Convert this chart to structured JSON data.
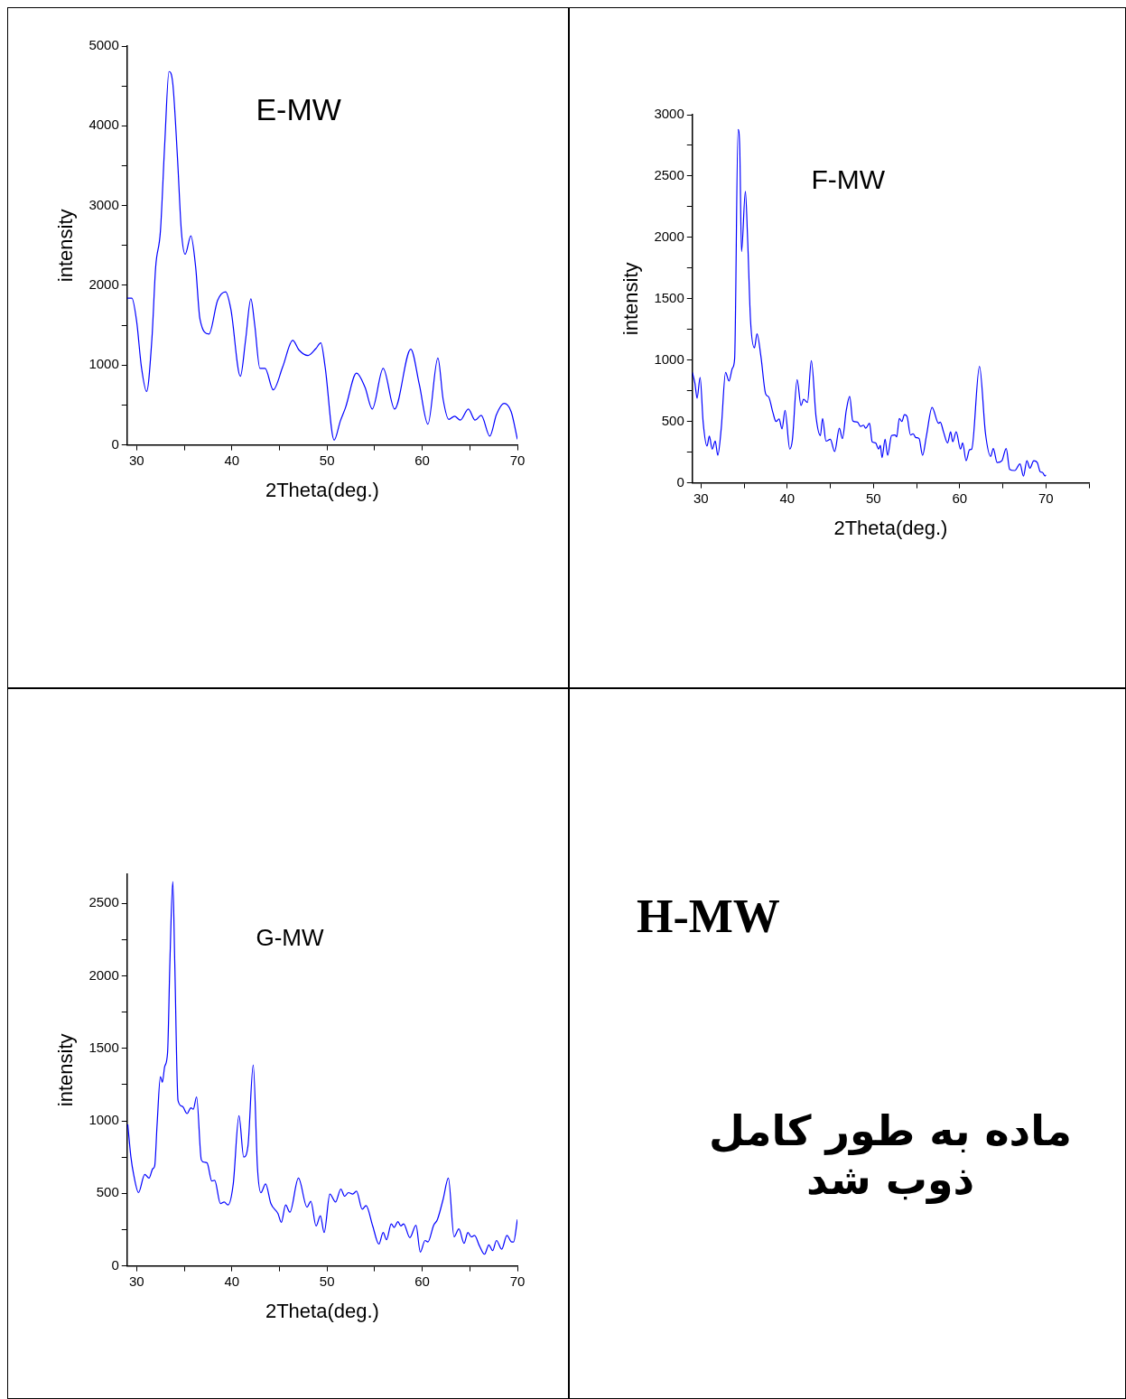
{
  "chart_data": [
    {
      "type": "line",
      "title": "E-MW",
      "xlabel": "2Theta(deg.)",
      "ylabel": "intensity",
      "xlim": [
        29,
        70
      ],
      "ylim": [
        0,
        5000
      ],
      "xticks": [
        30,
        {
          "value": 35,
          "label": null
        },
        40,
        {
          "value": 45,
          "label": null
        },
        50,
        {
          "value": 55,
          "label": null
        },
        60,
        {
          "value": 65,
          "label": null
        },
        70
      ],
      "yticks": [
        0,
        {
          "value": 500,
          "label": null
        },
        1000,
        {
          "value": 1500,
          "label": null
        },
        2000,
        {
          "value": 2500,
          "label": null
        },
        3000,
        {
          "value": 3500,
          "label": null
        },
        4000,
        {
          "value": 4500,
          "label": null
        },
        5000
      ],
      "x": [
        29,
        29.5,
        30,
        30.5,
        31.05,
        31.6,
        32,
        32.5,
        32.95,
        33.4,
        33.8,
        34.3,
        34.7,
        35.1,
        35.7,
        36.2,
        36.65,
        37.6,
        38.5,
        39.35,
        39.9,
        40.9,
        41.45,
        42,
        42.4,
        42.95,
        43.5,
        44.35,
        45.35,
        46.4,
        47.05,
        48,
        48.85,
        49.35,
        49.8,
        50.75,
        51.4,
        51.95,
        53.1,
        54,
        54.75,
        55.9,
        57.1,
        58.8,
        59.7,
        60.6,
        61.65,
        62.2,
        62.8,
        63.4,
        64,
        64.85,
        65.55,
        66.2,
        67.1,
        67.8,
        68.6,
        69.35,
        70
      ],
      "series": [
        {
          "color": "#0000ff",
          "values": [
            1840,
            1840,
            1550,
            980,
            670,
            1320,
            2230,
            2680,
            3770,
            4680,
            4530,
            3580,
            2680,
            2390,
            2620,
            2230,
            1580,
            1390,
            1810,
            1920,
            1700,
            860,
            1320,
            1830,
            1510,
            960,
            960,
            690,
            980,
            1310,
            1190,
            1120,
            1210,
            1280,
            980,
            60,
            300,
            470,
            900,
            720,
            450,
            960,
            450,
            1200,
            755,
            260,
            1090,
            570,
            320,
            360,
            310,
            450,
            310,
            370,
            110,
            380,
            520,
            415,
            70
          ]
        }
      ]
    },
    {
      "type": "line",
      "title": "F-MW",
      "xlabel": "2Theta(deg.)",
      "ylabel": "intensity",
      "xlim": [
        29,
        75
      ],
      "ylim": [
        0,
        3000
      ],
      "xticks": [
        30,
        {
          "value": 35,
          "label": null
        },
        40,
        {
          "value": 45,
          "label": null
        },
        50,
        {
          "value": 55,
          "label": null
        },
        60,
        {
          "value": 65,
          "label": null
        },
        70,
        {
          "value": 75,
          "label": null
        }
      ],
      "yticks": [
        0,
        {
          "value": 250,
          "label": null
        },
        500,
        {
          "value": 750,
          "label": null
        },
        1000,
        {
          "value": 1250,
          "label": null
        },
        1500,
        {
          "value": 1750,
          "label": null
        },
        2000,
        {
          "value": 2250,
          "label": null
        },
        2500,
        {
          "value": 2750,
          "label": null
        },
        3000
      ],
      "x": [
        29,
        29.3,
        29.55,
        29.9,
        30.25,
        30.7,
        30.97,
        31.3,
        31.65,
        31.95,
        32.35,
        32.85,
        33.25,
        33.65,
        33.9,
        34.3,
        34.5,
        34.7,
        35.15,
        35.4,
        35.75,
        36.2,
        36.5,
        36.95,
        37.5,
        37.85,
        38.35,
        38.7,
        39.05,
        39.4,
        39.75,
        40.3,
        40.6,
        41.15,
        41.6,
        41.9,
        42.35,
        42.8,
        43.35,
        43.85,
        44.1,
        44.5,
        45,
        45.5,
        46.05,
        46.4,
        46.85,
        47.25,
        47.6,
        48.15,
        48.5,
        48.85,
        49.1,
        49.55,
        49.85,
        50.25,
        50.6,
        50.8,
        51,
        51.35,
        51.65,
        52.1,
        52.5,
        52.7,
        53,
        53.3,
        53.6,
        53.9,
        54.3,
        54.6,
        54.9,
        55.3,
        55.7,
        56.15,
        56.8,
        57.55,
        57.75,
        58.15,
        58.6,
        58.95,
        59.2,
        59.6,
        60.1,
        60.35,
        60.75,
        61.15,
        61.4,
        62.3,
        63,
        63.6,
        63.9,
        64.35,
        64.9,
        65.4,
        65.8,
        66.4,
        67,
        67.4,
        67.8,
        68.15,
        68.6,
        69,
        69.35,
        69.6,
        69.9,
        70
      ],
      "series": [
        {
          "color": "#0000ff",
          "values": [
            900,
            810,
            690,
            860,
            495,
            300,
            380,
            275,
            340,
            225,
            445,
            900,
            830,
            935,
            1010,
            2880,
            2715,
            1885,
            2375,
            2005,
            1320,
            1100,
            1215,
            1030,
            725,
            700,
            570,
            500,
            520,
            440,
            590,
            275,
            350,
            840,
            630,
            680,
            655,
            995,
            535,
            385,
            525,
            340,
            355,
            255,
            445,
            360,
            590,
            705,
            505,
            495,
            460,
            470,
            445,
            485,
            335,
            325,
            275,
            305,
            205,
            355,
            225,
            385,
            390,
            375,
            525,
            500,
            555,
            540,
            390,
            400,
            370,
            360,
            225,
            385,
            615,
            485,
            495,
            410,
            325,
            415,
            335,
            415,
            275,
            325,
            180,
            270,
            275,
            950,
            400,
            215,
            280,
            165,
            180,
            280,
            110,
            100,
            155,
            55,
            180,
            120,
            180,
            165,
            90,
            85,
            55,
            65
          ]
        }
      ]
    },
    {
      "type": "line",
      "title": "G-MW",
      "xlabel": "2Theta(deg.)",
      "ylabel": "intensity",
      "xlim": [
        29,
        70
      ],
      "ylim": [
        0,
        2700
      ],
      "xticks": [
        30,
        {
          "value": 35,
          "label": null
        },
        40,
        {
          "value": 45,
          "label": null
        },
        50,
        {
          "value": 55,
          "label": null
        },
        60,
        {
          "value": 65,
          "label": null
        },
        70
      ],
      "yticks": [
        0,
        {
          "value": 250,
          "label": null
        },
        500,
        {
          "value": 750,
          "label": null
        },
        1000,
        {
          "value": 1250,
          "label": null
        },
        1500,
        {
          "value": 1750,
          "label": null
        },
        2000,
        {
          "value": 2250,
          "label": null
        },
        2500
      ],
      "x": [
        29.07,
        29.4,
        29.7,
        30.2,
        30.85,
        31.3,
        31.7,
        31.9,
        32.15,
        32.5,
        32.7,
        32.95,
        33.25,
        33.5,
        33.8,
        34,
        34.35,
        34.8,
        35.3,
        35.7,
        35.95,
        36.3,
        36.8,
        37.1,
        37.4,
        37.9,
        38.2,
        38.8,
        39.2,
        39.6,
        40.15,
        40.75,
        41.25,
        41.7,
        42.25,
        42.7,
        43.05,
        43.55,
        44.1,
        44.85,
        45.2,
        45.65,
        46.1,
        47,
        47.9,
        48.3,
        48.85,
        49.3,
        49.7,
        50.3,
        50.9,
        51.45,
        51.85,
        52.25,
        52.7,
        53.1,
        53.7,
        54.1,
        54.8,
        55.45,
        55.9,
        56.25,
        56.75,
        57.05,
        57.45,
        57.75,
        58.05,
        58.7,
        59.35,
        59.8,
        60.3,
        60.6,
        61.2,
        61.6,
        62.2,
        62.75,
        63.35,
        63.85,
        64.4,
        64.8,
        65.15,
        65.5,
        66,
        66.55,
        67,
        67.4,
        67.8,
        68.35,
        68.9,
        69.4,
        69.6,
        70
      ],
      "series": [
        {
          "color": "#0000ff",
          "values": [
            975,
            750,
            625,
            505,
            630,
            605,
            670,
            690,
            975,
            1305,
            1265,
            1375,
            1470,
            2105,
            2650,
            2105,
            1140,
            1100,
            1050,
            1090,
            1080,
            1165,
            730,
            715,
            710,
            585,
            590,
            430,
            440,
            420,
            565,
            1035,
            750,
            830,
            1385,
            670,
            505,
            565,
            430,
            360,
            300,
            420,
            370,
            605,
            405,
            445,
            275,
            345,
            230,
            495,
            440,
            530,
            480,
            505,
            495,
            515,
            390,
            415,
            275,
            150,
            230,
            180,
            290,
            265,
            305,
            275,
            290,
            195,
            280,
            95,
            175,
            165,
            280,
            320,
            460,
            605,
            200,
            255,
            155,
            230,
            200,
            210,
            140,
            80,
            145,
            105,
            175,
            115,
            210,
            165,
            165,
            320
          ]
        }
      ]
    },
    {
      "type": "other",
      "title": "H-MW",
      "annotations": [
        "ماده به طور کامل ذوب شد"
      ]
    }
  ]
}
